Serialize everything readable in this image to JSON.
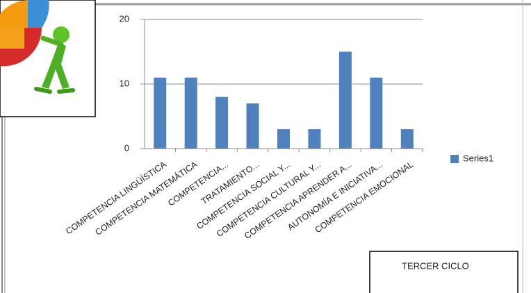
{
  "chart_data": {
    "type": "bar",
    "categories": [
      "COMPETENCIA LINGÜÍSTICA",
      "COMPETENCIA MATEMÁTICA",
      "COMPETENCIA...",
      "TRATAMIENTO...",
      "COMPETENCIA SOCIAL Y...",
      "COMPETENCIA CULTURAL Y...",
      "COMPETENCIA APRENDER A...",
      "AUTONOMÍA E INICIATIVA...",
      "COMPETENCIA EMOCIONAL"
    ],
    "series": [
      {
        "name": "Series1",
        "color": "#4f81bd",
        "values": [
          11,
          11,
          8,
          7,
          3,
          3,
          15,
          11,
          3
        ]
      }
    ],
    "ylim": [
      0,
      20
    ],
    "yticks": [
      0,
      10,
      20
    ],
    "grid": true,
    "legend": "right",
    "annotation": "TERCER CICLO"
  }
}
